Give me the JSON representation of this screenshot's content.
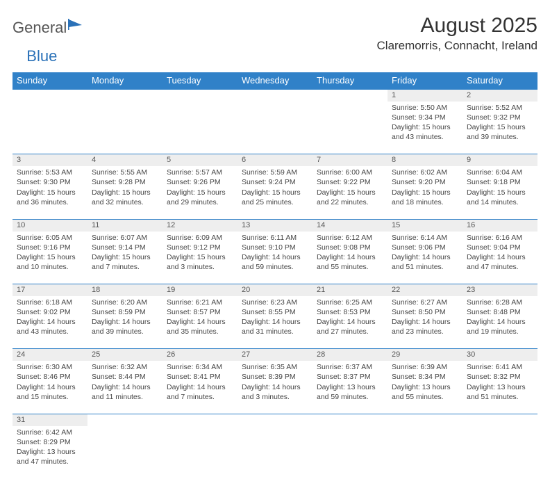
{
  "logo": {
    "text1": "General",
    "text2": "Blue"
  },
  "title": "August 2025",
  "location": "Claremorris, Connacht, Ireland",
  "colors": {
    "headerBg": "#3081c8",
    "headerText": "#ffffff",
    "dayStripe": "#eeeeee",
    "border": "#3081c8",
    "text": "#444444"
  },
  "dayHeaders": [
    "Sunday",
    "Monday",
    "Tuesday",
    "Wednesday",
    "Thursday",
    "Friday",
    "Saturday"
  ],
  "weeks": [
    [
      null,
      null,
      null,
      null,
      null,
      {
        "n": "1",
        "sr": "Sunrise: 5:50 AM",
        "ss": "Sunset: 9:34 PM",
        "dl": "Daylight: 15 hours and 43 minutes."
      },
      {
        "n": "2",
        "sr": "Sunrise: 5:52 AM",
        "ss": "Sunset: 9:32 PM",
        "dl": "Daylight: 15 hours and 39 minutes."
      }
    ],
    [
      {
        "n": "3",
        "sr": "Sunrise: 5:53 AM",
        "ss": "Sunset: 9:30 PM",
        "dl": "Daylight: 15 hours and 36 minutes."
      },
      {
        "n": "4",
        "sr": "Sunrise: 5:55 AM",
        "ss": "Sunset: 9:28 PM",
        "dl": "Daylight: 15 hours and 32 minutes."
      },
      {
        "n": "5",
        "sr": "Sunrise: 5:57 AM",
        "ss": "Sunset: 9:26 PM",
        "dl": "Daylight: 15 hours and 29 minutes."
      },
      {
        "n": "6",
        "sr": "Sunrise: 5:59 AM",
        "ss": "Sunset: 9:24 PM",
        "dl": "Daylight: 15 hours and 25 minutes."
      },
      {
        "n": "7",
        "sr": "Sunrise: 6:00 AM",
        "ss": "Sunset: 9:22 PM",
        "dl": "Daylight: 15 hours and 22 minutes."
      },
      {
        "n": "8",
        "sr": "Sunrise: 6:02 AM",
        "ss": "Sunset: 9:20 PM",
        "dl": "Daylight: 15 hours and 18 minutes."
      },
      {
        "n": "9",
        "sr": "Sunrise: 6:04 AM",
        "ss": "Sunset: 9:18 PM",
        "dl": "Daylight: 15 hours and 14 minutes."
      }
    ],
    [
      {
        "n": "10",
        "sr": "Sunrise: 6:05 AM",
        "ss": "Sunset: 9:16 PM",
        "dl": "Daylight: 15 hours and 10 minutes."
      },
      {
        "n": "11",
        "sr": "Sunrise: 6:07 AM",
        "ss": "Sunset: 9:14 PM",
        "dl": "Daylight: 15 hours and 7 minutes."
      },
      {
        "n": "12",
        "sr": "Sunrise: 6:09 AM",
        "ss": "Sunset: 9:12 PM",
        "dl": "Daylight: 15 hours and 3 minutes."
      },
      {
        "n": "13",
        "sr": "Sunrise: 6:11 AM",
        "ss": "Sunset: 9:10 PM",
        "dl": "Daylight: 14 hours and 59 minutes."
      },
      {
        "n": "14",
        "sr": "Sunrise: 6:12 AM",
        "ss": "Sunset: 9:08 PM",
        "dl": "Daylight: 14 hours and 55 minutes."
      },
      {
        "n": "15",
        "sr": "Sunrise: 6:14 AM",
        "ss": "Sunset: 9:06 PM",
        "dl": "Daylight: 14 hours and 51 minutes."
      },
      {
        "n": "16",
        "sr": "Sunrise: 6:16 AM",
        "ss": "Sunset: 9:04 PM",
        "dl": "Daylight: 14 hours and 47 minutes."
      }
    ],
    [
      {
        "n": "17",
        "sr": "Sunrise: 6:18 AM",
        "ss": "Sunset: 9:02 PM",
        "dl": "Daylight: 14 hours and 43 minutes."
      },
      {
        "n": "18",
        "sr": "Sunrise: 6:20 AM",
        "ss": "Sunset: 8:59 PM",
        "dl": "Daylight: 14 hours and 39 minutes."
      },
      {
        "n": "19",
        "sr": "Sunrise: 6:21 AM",
        "ss": "Sunset: 8:57 PM",
        "dl": "Daylight: 14 hours and 35 minutes."
      },
      {
        "n": "20",
        "sr": "Sunrise: 6:23 AM",
        "ss": "Sunset: 8:55 PM",
        "dl": "Daylight: 14 hours and 31 minutes."
      },
      {
        "n": "21",
        "sr": "Sunrise: 6:25 AM",
        "ss": "Sunset: 8:53 PM",
        "dl": "Daylight: 14 hours and 27 minutes."
      },
      {
        "n": "22",
        "sr": "Sunrise: 6:27 AM",
        "ss": "Sunset: 8:50 PM",
        "dl": "Daylight: 14 hours and 23 minutes."
      },
      {
        "n": "23",
        "sr": "Sunrise: 6:28 AM",
        "ss": "Sunset: 8:48 PM",
        "dl": "Daylight: 14 hours and 19 minutes."
      }
    ],
    [
      {
        "n": "24",
        "sr": "Sunrise: 6:30 AM",
        "ss": "Sunset: 8:46 PM",
        "dl": "Daylight: 14 hours and 15 minutes."
      },
      {
        "n": "25",
        "sr": "Sunrise: 6:32 AM",
        "ss": "Sunset: 8:44 PM",
        "dl": "Daylight: 14 hours and 11 minutes."
      },
      {
        "n": "26",
        "sr": "Sunrise: 6:34 AM",
        "ss": "Sunset: 8:41 PM",
        "dl": "Daylight: 14 hours and 7 minutes."
      },
      {
        "n": "27",
        "sr": "Sunrise: 6:35 AM",
        "ss": "Sunset: 8:39 PM",
        "dl": "Daylight: 14 hours and 3 minutes."
      },
      {
        "n": "28",
        "sr": "Sunrise: 6:37 AM",
        "ss": "Sunset: 8:37 PM",
        "dl": "Daylight: 13 hours and 59 minutes."
      },
      {
        "n": "29",
        "sr": "Sunrise: 6:39 AM",
        "ss": "Sunset: 8:34 PM",
        "dl": "Daylight: 13 hours and 55 minutes."
      },
      {
        "n": "30",
        "sr": "Sunrise: 6:41 AM",
        "ss": "Sunset: 8:32 PM",
        "dl": "Daylight: 13 hours and 51 minutes."
      }
    ],
    [
      {
        "n": "31",
        "sr": "Sunrise: 6:42 AM",
        "ss": "Sunset: 8:29 PM",
        "dl": "Daylight: 13 hours and 47 minutes."
      },
      null,
      null,
      null,
      null,
      null,
      null
    ]
  ]
}
